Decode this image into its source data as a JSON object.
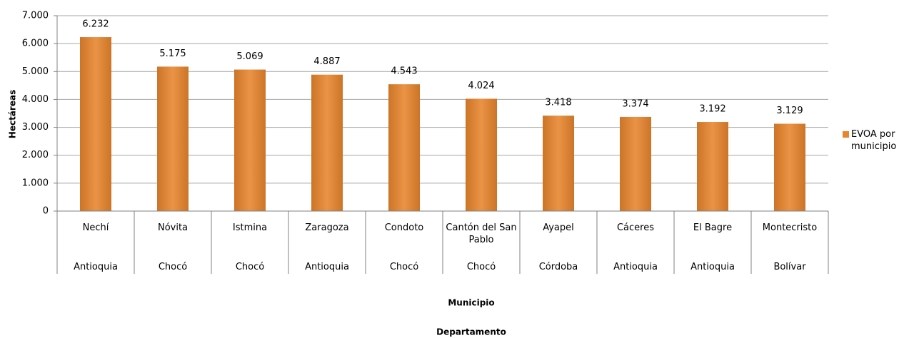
{
  "chart_data": {
    "type": "bar",
    "categories": [
      "Nechí",
      "Nóvita",
      "Istmina",
      "Zaragoza",
      "Condoto",
      "Cantón del San Pablo",
      "Ayapel",
      "Cáceres",
      "El Bagre",
      "Montecristo"
    ],
    "departments": [
      "Antioquia",
      "Chocó",
      "Chocó",
      "Antioquia",
      "Chocó",
      "Chocó",
      "Córdoba",
      "Antioquia",
      "Antioquia",
      "Bolívar"
    ],
    "series": [
      {
        "name": "EVOA por municipio",
        "color": "#e8842c",
        "values": [
          6232,
          5175,
          5069,
          4887,
          4543,
          4024,
          3418,
          3374,
          3192,
          3129
        ],
        "value_labels": [
          "6.232",
          "5.175",
          "5.069",
          "4.887",
          "4.543",
          "4.024",
          "3.418",
          "3.374",
          "3.192",
          "3.129"
        ]
      }
    ],
    "ylabel": "Hectáreas",
    "xlabel": "Municipio",
    "xlabel2": "Departamento",
    "ylim": [
      0,
      7000
    ],
    "yticks": [
      0,
      {
        "value": 1000,
        "label": "1.000"
      },
      {
        "value": 2000,
        "label": "2.000"
      },
      {
        "value": 3000,
        "label": "3.000"
      },
      {
        "value": 4000,
        "label": "4.000"
      },
      {
        "value": 5000,
        "label": "5.000"
      },
      {
        "value": 6000,
        "label": "6.000"
      },
      {
        "value": 7000,
        "label": "7.000"
      }
    ],
    "grid": true,
    "legend": "right"
  }
}
